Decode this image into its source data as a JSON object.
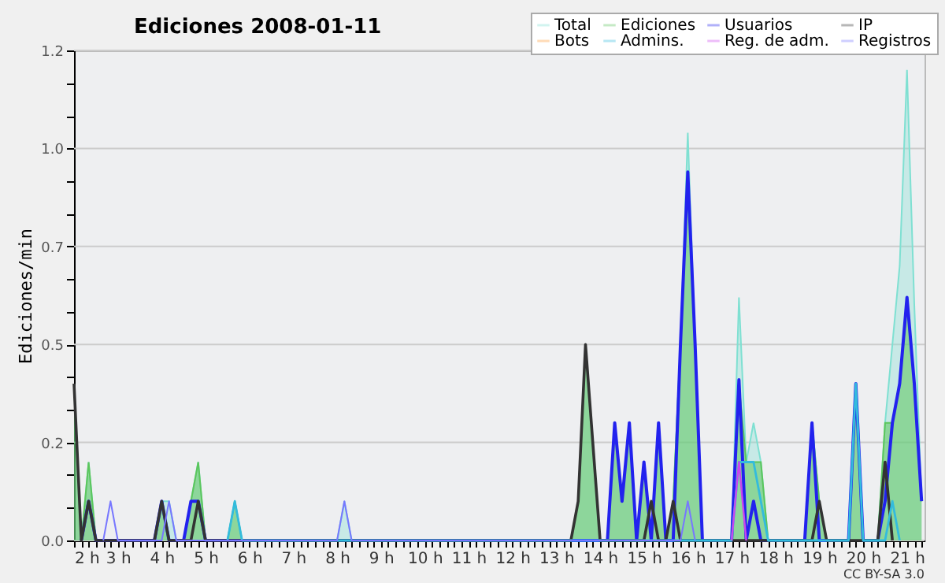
{
  "chart_data": {
    "type": "area",
    "title": "Ediciones  2008-01-11",
    "ylabel": "Ediciones/min",
    "annotations": [
      "CC BY-SA 3.0"
    ],
    "xlim": [
      2,
      21.4
    ],
    "ylim": [
      0,
      1.25
    ],
    "xticks": [
      {
        "value": 2,
        "label": "2 h"
      },
      {
        "value": 2.167,
        "label": null
      },
      {
        "value": 2.333,
        "label": null
      },
      {
        "value": 2.5,
        "label": null
      },
      {
        "value": 2.667,
        "label": null
      },
      {
        "value": 2.833,
        "label": null
      },
      {
        "value": 3,
        "label": "3 h"
      },
      {
        "value": 3.167,
        "label": null
      },
      {
        "value": 3.333,
        "label": null
      },
      {
        "value": 3.5,
        "label": null
      },
      {
        "value": 3.667,
        "label": null
      },
      {
        "value": 3.833,
        "label": null
      },
      {
        "value": 4,
        "label": "4 h"
      },
      {
        "value": 4.167,
        "label": null
      },
      {
        "value": 4.333,
        "label": null
      },
      {
        "value": 4.5,
        "label": null
      },
      {
        "value": 4.667,
        "label": null
      },
      {
        "value": 4.833,
        "label": null
      },
      {
        "value": 5,
        "label": "5 h"
      },
      {
        "value": 5.167,
        "label": null
      },
      {
        "value": 5.333,
        "label": null
      },
      {
        "value": 5.5,
        "label": null
      },
      {
        "value": 5.667,
        "label": null
      },
      {
        "value": 5.833,
        "label": null
      },
      {
        "value": 6,
        "label": "6 h"
      },
      {
        "value": 6.167,
        "label": null
      },
      {
        "value": 6.333,
        "label": null
      },
      {
        "value": 6.5,
        "label": null
      },
      {
        "value": 6.667,
        "label": null
      },
      {
        "value": 6.833,
        "label": null
      },
      {
        "value": 7,
        "label": "7 h"
      },
      {
        "value": 7.167,
        "label": null
      },
      {
        "value": 7.333,
        "label": null
      },
      {
        "value": 7.5,
        "label": null
      },
      {
        "value": 7.667,
        "label": null
      },
      {
        "value": 7.833,
        "label": null
      },
      {
        "value": 8,
        "label": "8 h"
      },
      {
        "value": 8.167,
        "label": null
      },
      {
        "value": 8.333,
        "label": null
      },
      {
        "value": 8.5,
        "label": null
      },
      {
        "value": 8.667,
        "label": null
      },
      {
        "value": 8.833,
        "label": null
      },
      {
        "value": 9,
        "label": "9 h"
      },
      {
        "value": 9.167,
        "label": null
      },
      {
        "value": 9.333,
        "label": null
      },
      {
        "value": 9.5,
        "label": null
      },
      {
        "value": 9.667,
        "label": null
      },
      {
        "value": 9.833,
        "label": null
      },
      {
        "value": 10,
        "label": "10 h"
      },
      {
        "value": 10.167,
        "label": null
      },
      {
        "value": 10.333,
        "label": null
      },
      {
        "value": 10.5,
        "label": null
      },
      {
        "value": 10.667,
        "label": null
      },
      {
        "value": 10.833,
        "label": null
      },
      {
        "value": 11,
        "label": "11 h"
      },
      {
        "value": 11.167,
        "label": null
      },
      {
        "value": 11.333,
        "label": null
      },
      {
        "value": 11.5,
        "label": null
      },
      {
        "value": 11.667,
        "label": null
      },
      {
        "value": 11.833,
        "label": null
      },
      {
        "value": 12,
        "label": "12 h"
      },
      {
        "value": 12.167,
        "label": null
      },
      {
        "value": 12.333,
        "label": null
      },
      {
        "value": 12.5,
        "label": null
      },
      {
        "value": 12.667,
        "label": null
      },
      {
        "value": 12.833,
        "label": null
      },
      {
        "value": 13,
        "label": "13 h"
      },
      {
        "value": 13.167,
        "label": null
      },
      {
        "value": 13.333,
        "label": null
      },
      {
        "value": 13.5,
        "label": null
      },
      {
        "value": 13.667,
        "label": null
      },
      {
        "value": 13.833,
        "label": null
      },
      {
        "value": 14,
        "label": "14 h"
      },
      {
        "value": 14.167,
        "label": null
      },
      {
        "value": 14.333,
        "label": null
      },
      {
        "value": 14.5,
        "label": null
      },
      {
        "value": 14.667,
        "label": null
      },
      {
        "value": 14.833,
        "label": null
      },
      {
        "value": 15,
        "label": "15 h"
      },
      {
        "value": 15.167,
        "label": null
      },
      {
        "value": 15.333,
        "label": null
      },
      {
        "value": 15.5,
        "label": null
      },
      {
        "value": 15.667,
        "label": null
      },
      {
        "value": 15.833,
        "label": null
      },
      {
        "value": 16,
        "label": "16 h"
      },
      {
        "value": 16.167,
        "label": null
      },
      {
        "value": 16.333,
        "label": null
      },
      {
        "value": 16.5,
        "label": null
      },
      {
        "value": 16.667,
        "label": null
      },
      {
        "value": 16.833,
        "label": null
      },
      {
        "value": 17,
        "label": "17 h"
      },
      {
        "value": 17.167,
        "label": null
      },
      {
        "value": 17.333,
        "label": null
      },
      {
        "value": 17.5,
        "label": null
      },
      {
        "value": 17.667,
        "label": null
      },
      {
        "value": 17.833,
        "label": null
      },
      {
        "value": 18,
        "label": "18 h"
      },
      {
        "value": 18.167,
        "label": null
      },
      {
        "value": 18.333,
        "label": null
      },
      {
        "value": 18.5,
        "label": null
      },
      {
        "value": 18.667,
        "label": null
      },
      {
        "value": 18.833,
        "label": null
      },
      {
        "value": 19,
        "label": "19 h"
      },
      {
        "value": 19.167,
        "label": null
      },
      {
        "value": 19.333,
        "label": null
      },
      {
        "value": 19.5,
        "label": null
      },
      {
        "value": 19.667,
        "label": null
      },
      {
        "value": 19.833,
        "label": null
      },
      {
        "value": 20,
        "label": "20 h"
      },
      {
        "value": 20.167,
        "label": null
      },
      {
        "value": 20.333,
        "label": null
      },
      {
        "value": 20.5,
        "label": null
      },
      {
        "value": 20.667,
        "label": null
      },
      {
        "value": 20.833,
        "label": null
      },
      {
        "value": 21,
        "label": "21 h"
      },
      {
        "value": 21.167,
        "label": null
      },
      {
        "value": 21.333,
        "label": null
      }
    ],
    "yticks": [
      {
        "value": 0,
        "label": "0.0"
      },
      {
        "value": 0.083,
        "label": null
      },
      {
        "value": 0.167,
        "label": null
      },
      {
        "value": 0.25,
        "label": "0.2"
      },
      {
        "value": 0.333,
        "label": null
      },
      {
        "value": 0.417,
        "label": null
      },
      {
        "value": 0.5,
        "label": "0.5"
      },
      {
        "value": 0.583,
        "label": null
      },
      {
        "value": 0.667,
        "label": null
      },
      {
        "value": 0.75,
        "label": "0.7"
      },
      {
        "value": 0.833,
        "label": null
      },
      {
        "value": 0.917,
        "label": null
      },
      {
        "value": 1,
        "label": "1.0"
      },
      {
        "value": 1.083,
        "label": null
      },
      {
        "value": 1.167,
        "label": null
      },
      {
        "value": 1.25,
        "label": "1.2"
      }
    ],
    "grid": "y",
    "legend": "top right",
    "marker": "none",
    "line_style": "solid",
    "series": [
      {
        "name": "Total",
        "color": "#7fe0d2",
        "x": [
          2,
          2.167,
          2.333,
          2.5,
          3.833,
          4,
          4.167,
          4.333,
          4.5,
          4.667,
          4.833,
          5,
          5.5,
          5.667,
          5.833,
          8,
          8.167,
          8.333,
          13.333,
          13.5,
          13.667,
          13.833,
          14,
          14.167,
          14.333,
          14.5,
          14.667,
          14.833,
          15,
          15.167,
          15.333,
          15.5,
          15.667,
          15.833,
          16,
          16.167,
          16.333,
          17,
          17.167,
          17.333,
          17.5,
          17.667,
          17.833,
          18.667,
          18.833,
          19,
          19.167,
          19.667,
          19.833,
          20,
          20.333,
          20.5,
          20.667,
          20.833,
          21,
          21.167,
          21.333
        ],
        "values": [
          0.4,
          0,
          0.2,
          0,
          0,
          0.1,
          0.1,
          0,
          0,
          0.1,
          0.2,
          0,
          0,
          0.1,
          0,
          0,
          0.1,
          0,
          0,
          0.1,
          0.5,
          0.25,
          0,
          0,
          0.3,
          0.1,
          0.3,
          0,
          0.2,
          0,
          0.3,
          0,
          0.1,
          0.5,
          1.04,
          0.5,
          0,
          0,
          0.62,
          0.2,
          0.3,
          0.2,
          0,
          0,
          0.3,
          0.1,
          0,
          0,
          0.4,
          0,
          0,
          0.3,
          0.5,
          0.7,
          1.2,
          0.6,
          0.1
        ]
      },
      {
        "name": "Ediciones",
        "color": "#5cc65c",
        "x": [
          2,
          2.167,
          2.333,
          2.5,
          3.833,
          4,
          4.167,
          4.5,
          4.667,
          4.833,
          5,
          5.5,
          5.667,
          5.833,
          13.333,
          13.5,
          13.667,
          13.833,
          14,
          14.167,
          14.333,
          14.5,
          14.667,
          14.833,
          15,
          15.167,
          15.333,
          15.5,
          15.667,
          15.833,
          16,
          16.167,
          16.333,
          17,
          17.167,
          17.333,
          17.5,
          17.667,
          17.833,
          18.667,
          18.833,
          19,
          19.167,
          19.667,
          19.833,
          20,
          20.333,
          20.5,
          20.667,
          20.833,
          21,
          21.167,
          21.333
        ],
        "values": [
          0.4,
          0,
          0.2,
          0,
          0,
          0.1,
          0,
          0,
          0.1,
          0.2,
          0,
          0,
          0.1,
          0,
          0,
          0.1,
          0.5,
          0.25,
          0,
          0,
          0.3,
          0.1,
          0.3,
          0,
          0.2,
          0,
          0.3,
          0,
          0.1,
          0.5,
          0.94,
          0.5,
          0,
          0,
          0.4,
          0.2,
          0.2,
          0.2,
          0,
          0,
          0.3,
          0.1,
          0,
          0,
          0.4,
          0,
          0,
          0.3,
          0.3,
          0.4,
          0.6,
          0.4,
          0.1
        ]
      },
      {
        "name": "Usuarios",
        "type": "line",
        "color": "#2222ee",
        "x": [
          2.167,
          2.333,
          2.5,
          3.833,
          4,
          4.167,
          4.5,
          4.667,
          4.833,
          5,
          14.167,
          14.333,
          14.5,
          14.667,
          14.833,
          15,
          15.167,
          15.333,
          15.5,
          15.667,
          15.833,
          16,
          16.167,
          16.333,
          17,
          17.167,
          17.333,
          17.5,
          17.667,
          18.667,
          18.833,
          19,
          19.667,
          19.833,
          20,
          20.333,
          20.5,
          20.667,
          20.833,
          21,
          21.167,
          21.333
        ],
        "values": [
          0,
          0.1,
          0,
          0,
          0.1,
          0,
          0,
          0.1,
          0.1,
          0,
          0,
          0.3,
          0.1,
          0.3,
          0,
          0.2,
          0,
          0.3,
          0,
          0,
          0.5,
          0.94,
          0.5,
          0,
          0,
          0.41,
          0,
          0.1,
          0,
          0,
          0.3,
          0,
          0,
          0.4,
          0,
          0,
          0.1,
          0.3,
          0.4,
          0.62,
          0.4,
          0.1
        ]
      },
      {
        "name": "IP",
        "type": "line",
        "color": "#333333",
        "x": [
          2,
          2.167,
          2.333,
          2.5,
          3.833,
          4,
          4.167,
          4.667,
          4.833,
          5,
          13.333,
          13.5,
          13.667,
          13.833,
          14,
          15,
          15.167,
          15.333,
          15.5,
          15.667,
          15.833,
          18.833,
          19,
          19.167,
          20.333,
          20.5,
          20.667
        ],
        "values": [
          0.4,
          0,
          0.1,
          0,
          0,
          0.1,
          0,
          0,
          0.1,
          0,
          0,
          0.1,
          0.5,
          0.25,
          0,
          0,
          0.1,
          0,
          0,
          0.1,
          0,
          0,
          0.1,
          0,
          0,
          0.2,
          0
        ]
      },
      {
        "name": "Bots",
        "type": "line",
        "color": "#ff9933"
      },
      {
        "name": "Admins.",
        "type": "line",
        "color": "#33bbdd",
        "x": [
          5.5,
          5.667,
          5.833,
          17,
          17.167,
          17.333,
          17.5,
          17.667,
          17.833,
          19.667,
          19.833,
          20,
          20.5,
          20.667,
          20.833
        ],
        "values": [
          0,
          0.1,
          0,
          0,
          0.2,
          0.2,
          0.2,
          0.1,
          0,
          0,
          0.4,
          0,
          0,
          0.1,
          0
        ]
      },
      {
        "name": "Reg. de adm.",
        "type": "line",
        "color": "#cc44ee",
        "x": [
          17,
          17.167,
          17.333
        ],
        "values": [
          0,
          0.2,
          0
        ]
      },
      {
        "name": "Registros",
        "type": "line",
        "color": "#7777ff",
        "x": [
          2.667,
          2.833,
          3,
          4,
          4.167,
          4.333,
          8,
          8.167,
          8.333,
          15.833,
          16,
          16.167
        ],
        "values": [
          0,
          0.1,
          0,
          0,
          0.1,
          0,
          0,
          0.1,
          0,
          0,
          0.1,
          0
        ]
      }
    ]
  }
}
